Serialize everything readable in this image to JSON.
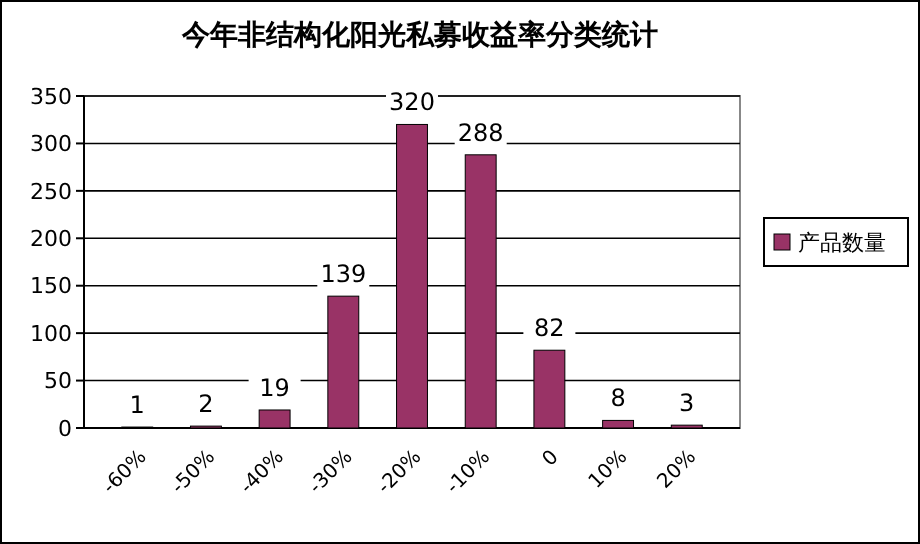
{
  "chart_data": {
    "type": "bar",
    "title": "今年非结构化阳光私募收益率分类统计",
    "categories": [
      "-60%",
      "-50%",
      "-40%",
      "-30%",
      "-20%",
      "-10%",
      "0",
      "10%",
      "20%"
    ],
    "series": [
      {
        "name": "产品数量",
        "color": "#993366",
        "values": [
          1,
          2,
          19,
          139,
          320,
          288,
          82,
          8,
          3
        ]
      }
    ],
    "ylim": [
      0,
      350
    ],
    "yticks": [
      0,
      50,
      100,
      150,
      200,
      250,
      300,
      350
    ],
    "grid": "y",
    "legend": "right",
    "data_labels": true
  }
}
